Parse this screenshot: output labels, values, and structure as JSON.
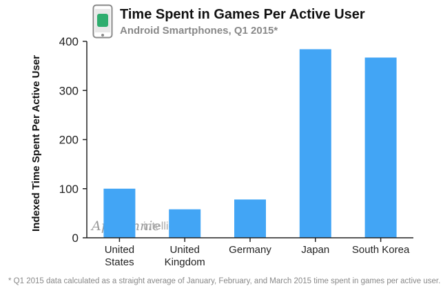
{
  "header": {
    "title": "Time Spent in Games Per Active User",
    "subtitle": "Android Smartphones, Q1 2015*",
    "icon": "smartphone-icon"
  },
  "watermark": {
    "brand": "App Annie",
    "suffix": "intelligence"
  },
  "footnote": "* Q1 2015 data calculated as a straight average of January, February, and March 2015 time spent in games per active user.",
  "colors": {
    "bar": "#42A5F5",
    "axis": "#222222",
    "phone_screen": "#2EAD6E"
  },
  "chart_data": {
    "type": "bar",
    "title": "Time Spent in Games Per Active User",
    "subtitle": "Android Smartphones, Q1 2015*",
    "xlabel": "",
    "ylabel": "Indexed Time Spent Per Active User",
    "categories": [
      [
        "United",
        "States"
      ],
      [
        "United",
        "Kingdom"
      ],
      [
        "Germany"
      ],
      [
        "Japan"
      ],
      [
        "South Korea"
      ]
    ],
    "values": [
      100,
      58,
      78,
      384,
      367
    ],
    "ylim": [
      0,
      400
    ],
    "yticks": [
      0,
      100,
      200,
      300,
      400
    ],
    "grid": false,
    "legend": "none"
  }
}
